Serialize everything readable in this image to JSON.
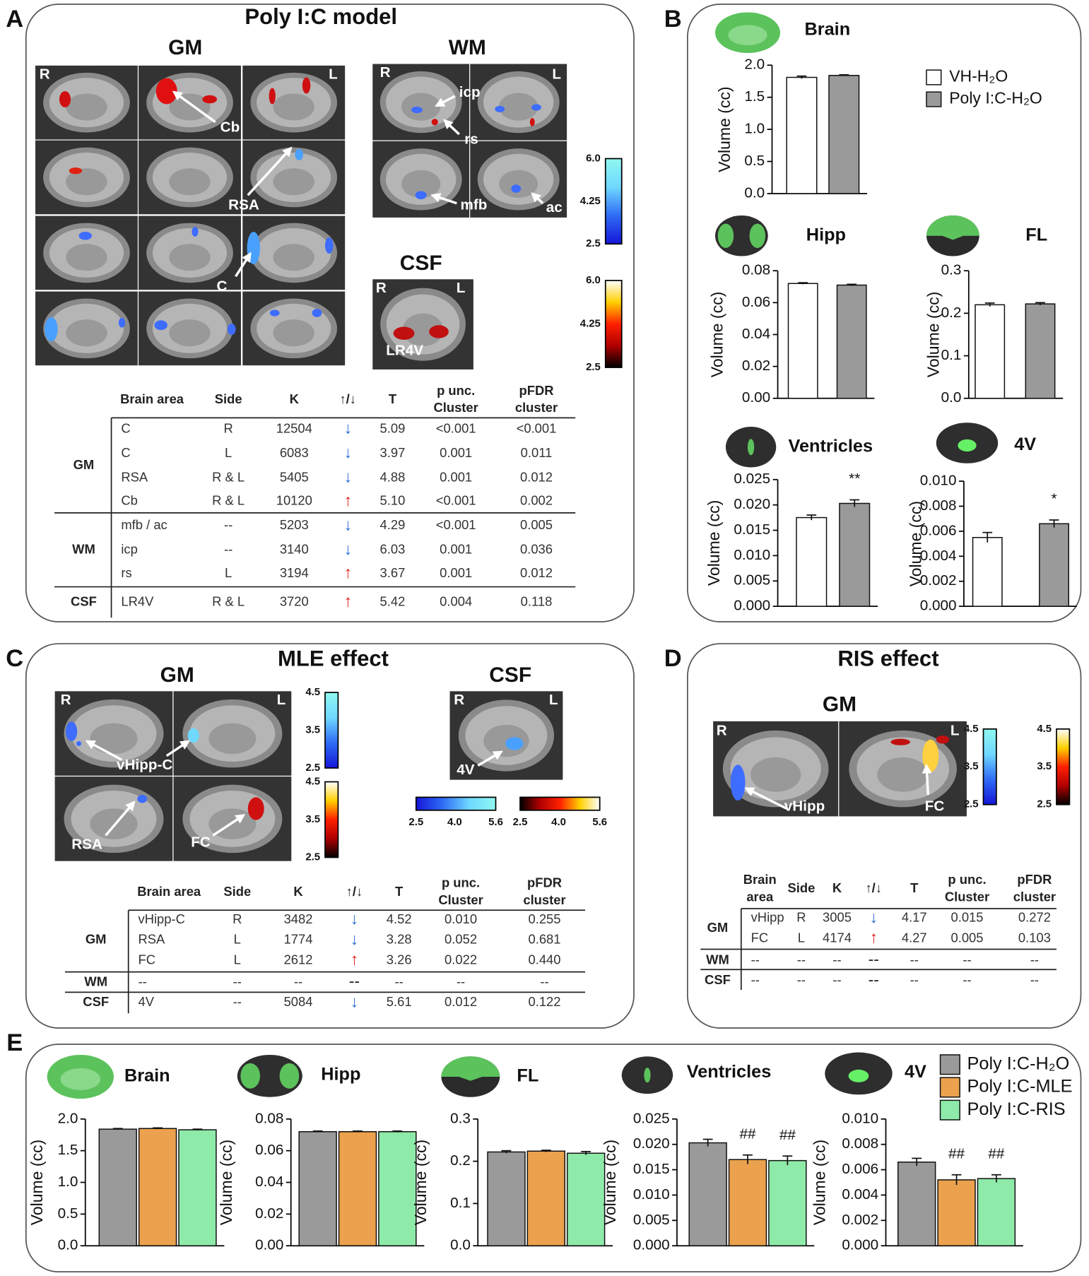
{
  "panel_A": {
    "label": "A",
    "title": "Poly I:C model",
    "gm": "GM",
    "wm": "WM",
    "csf": "CSF",
    "image_labels": [
      "R",
      "L",
      "Cb",
      "RSA",
      "C",
      "R",
      "L",
      "icp",
      "rs",
      "mfb",
      "ac",
      "R",
      "L",
      "LR4V"
    ],
    "colorbars": [
      {
        "colormap": "cool",
        "lim": [
          2.5,
          6.0
        ],
        "ticks": [
          {
            "value": 6,
            "label": "6.0"
          },
          4.25,
          2.5
        ]
      },
      {
        "colormap": "hot",
        "lim": [
          2.5,
          6.0
        ],
        "ticks": [
          {
            "value": 6,
            "label": "6.0"
          },
          4.25,
          2.5
        ]
      }
    ]
  },
  "panel_B": {
    "label": "B"
  },
  "panel_C": {
    "label": "C",
    "title": "MLE effect",
    "gm": "GM",
    "csf": "CSF",
    "image_labels": [
      "R",
      "L",
      "vHipp-C",
      "RSA",
      "FC",
      "R",
      "L",
      "4V"
    ],
    "colorbars": [
      {
        "colormap": "cool",
        "lim": [
          2.5,
          4.5
        ],
        "ticks": [
          4.5,
          3.5,
          2.5
        ]
      },
      {
        "colormap": "hot",
        "lim": [
          2.5,
          4.5
        ],
        "ticks": [
          4.5,
          3.5,
          2.5
        ]
      },
      {
        "colormap": "cool",
        "lim": [
          2.5,
          5.6
        ],
        "ticks": [
          2.5,
          {
            "value": 4,
            "label": "4.0"
          },
          5.6
        ]
      },
      {
        "colormap": "hot",
        "lim": [
          2.5,
          5.6
        ],
        "ticks": [
          2.5,
          {
            "value": 4,
            "label": "4.0"
          },
          5.6
        ]
      }
    ]
  },
  "panel_D": {
    "label": "D",
    "title": "RIS effect",
    "gm": "GM",
    "image_labels": [
      "R",
      "L",
      "vHipp",
      "FC"
    ],
    "colorbars": [
      {
        "colormap": "cool",
        "lim": [
          2.5,
          4.5
        ],
        "ticks": [
          4.5,
          3.5,
          2.5
        ]
      },
      {
        "colormap": "hot",
        "lim": [
          2.5,
          4.5
        ],
        "ticks": [
          4.5,
          3.5,
          2.5
        ]
      }
    ]
  },
  "panel_E": {
    "label": "E"
  },
  "tables": {
    "A": {
      "columns": [
        "Brain area",
        "Side",
        "K",
        "↑/↓",
        "T",
        [
          "p unc.",
          "Cluster"
        ],
        [
          "pFDR",
          "cluster"
        ]
      ],
      "groups": [
        {
          "name": "GM",
          "rows": [
            [
              "C",
              "R",
              "12504",
              "↓",
              "5.09",
              "<0.001",
              "<0.001"
            ],
            [
              "C",
              "L",
              "6083",
              "↓",
              "3.97",
              "0.001",
              "0.011"
            ],
            [
              "RSA",
              "R & L",
              "5405",
              "↓",
              "4.88",
              "0.001",
              "0.012"
            ],
            [
              "Cb",
              "R & L",
              "10120",
              "↑",
              "5.10",
              "<0.001",
              "0.002"
            ]
          ]
        },
        {
          "name": "WM",
          "rows": [
            [
              "mfb / ac",
              "--",
              "5203",
              "↓",
              "4.29",
              "<0.001",
              "0.005"
            ],
            [
              "icp",
              "--",
              "3140",
              "↓",
              "6.03",
              "0.001",
              "0.036"
            ],
            [
              "rs",
              "L",
              "3194",
              "↑",
              "3.67",
              "0.001",
              "0.012"
            ]
          ]
        },
        {
          "name": "CSF",
          "rows": [
            [
              "LR4V",
              "R & L",
              "3720",
              "↑",
              "5.42",
              "0.004",
              "0.118"
            ]
          ]
        }
      ]
    },
    "C": {
      "columns": [
        "Brain area",
        "Side",
        "K",
        "↑/↓",
        "T",
        [
          "p unc.",
          "Cluster"
        ],
        [
          "pFDR",
          "cluster"
        ]
      ],
      "groups": [
        {
          "name": "GM",
          "rows": [
            [
              "vHipp-C",
              "R",
              "3482",
              "↓",
              "4.52",
              "0.010",
              "0.255"
            ],
            [
              "RSA",
              "L",
              "1774",
              "↓",
              "3.28",
              "0.052",
              "0.681"
            ],
            [
              "FC",
              "L",
              "2612",
              "↑",
              "3.26",
              "0.022",
              "0.440"
            ]
          ]
        },
        {
          "name": "WM",
          "rows": [
            [
              "--",
              "--",
              "--",
              "--",
              "--",
              "--",
              "--"
            ]
          ]
        },
        {
          "name": "CSF",
          "rows": [
            [
              "4V",
              "--",
              "5084",
              "↓",
              "5.61",
              "0.012",
              "0.122"
            ]
          ]
        }
      ]
    },
    "D": {
      "columns": [
        [
          "Brain",
          "area"
        ],
        "Side",
        "K",
        "↑/↓",
        "T",
        [
          "p unc.",
          "Cluster"
        ],
        [
          "pFDR",
          "cluster"
        ]
      ],
      "groups": [
        {
          "name": "GM",
          "rows": [
            [
              "vHipp",
              "R",
              "3005",
              "↓",
              "4.17",
              "0.015",
              "0.272"
            ],
            [
              "FC",
              "L",
              "4174",
              "↑",
              "4.27",
              "0.005",
              "0.103"
            ]
          ]
        },
        {
          "name": "WM",
          "rows": [
            [
              "--",
              "--",
              "--",
              "--",
              "--",
              "--",
              "--"
            ]
          ]
        },
        {
          "name": "CSF",
          "rows": [
            [
              "--",
              "--",
              "--",
              "--",
              "--",
              "--",
              "--"
            ]
          ]
        }
      ]
    }
  },
  "chart_data": [
    {
      "type": "bar",
      "title": "Brain",
      "ylabel": "Volume (cc)",
      "ylim": [
        0,
        2.0
      ],
      "yticks": [
        {
          "value": 0,
          "label": "0.0"
        },
        0.5,
        {
          "value": 1,
          "label": "1.0"
        },
        1.5,
        {
          "value": 2,
          "label": "2.0"
        }
      ],
      "legend": true,
      "series": [
        {
          "name": "VH-H₂O",
          "color": "#ffffff",
          "values": [
            1.81
          ],
          "errors": [
            0.02
          ]
        },
        {
          "name": "Poly I:C-H₂O",
          "color": "#9a9a9a",
          "values": [
            1.84
          ],
          "errors": [
            0.01
          ]
        }
      ]
    },
    {
      "type": "bar",
      "title": "Hipp",
      "ylabel": "Volume (cc)",
      "ylim": [
        0,
        0.08
      ],
      "yticks": [
        {
          "value": 0,
          "label": "0.00"
        },
        {
          "value": 0.02,
          "label": "0.02"
        },
        {
          "value": 0.04,
          "label": "0.04"
        },
        {
          "value": 0.06,
          "label": "0.06"
        },
        {
          "value": 0.08,
          "label": "0.08"
        }
      ],
      "series": [
        {
          "color": "#ffffff",
          "values": [
            0.072
          ],
          "errors": [
            0.0005
          ]
        },
        {
          "color": "#9a9a9a",
          "values": [
            0.071
          ],
          "errors": [
            0.0005
          ]
        }
      ]
    },
    {
      "type": "bar",
      "title": "FL",
      "ylabel": "Volume (cc)",
      "ylim": [
        0,
        0.3
      ],
      "yticks": [
        {
          "value": 0,
          "label": "0.0"
        },
        0.1,
        0.2,
        0.3
      ],
      "series": [
        {
          "color": "#ffffff",
          "values": [
            0.22
          ],
          "errors": [
            0.004
          ]
        },
        {
          "color": "#9a9a9a",
          "values": [
            0.222
          ],
          "errors": [
            0.003
          ]
        }
      ]
    },
    {
      "type": "bar",
      "title": "Ventricles",
      "ylabel": "Volume (cc)",
      "ylim": [
        0,
        0.025
      ],
      "yticks": [
        {
          "value": 0,
          "label": "0.000"
        },
        0.005,
        {
          "value": 0.01,
          "label": "0.010"
        },
        0.015,
        {
          "value": 0.02,
          "label": "0.020"
        },
        0.025
      ],
      "series": [
        {
          "color": "#ffffff",
          "values": [
            0.0175
          ],
          "errors": [
            0.0005
          ]
        },
        {
          "color": "#9a9a9a",
          "values": [
            0.0203
          ],
          "errors": [
            0.0007
          ],
          "annotations": [
            "**"
          ]
        }
      ]
    },
    {
      "type": "bar",
      "title": "4V",
      "ylabel": "Volume (cc)",
      "ylim": [
        0,
        0.01
      ],
      "yticks": [
        {
          "value": 0,
          "label": "0.000"
        },
        0.002,
        0.004,
        0.006,
        0.008,
        {
          "value": 0.01,
          "label": "0.010"
        }
      ],
      "series": [
        {
          "color": "#ffffff",
          "values": [
            0.0055
          ],
          "errors": [
            0.0004
          ]
        },
        {
          "color": "#9a9a9a",
          "values": [
            0.0066
          ],
          "errors": [
            0.0003
          ],
          "annotations": [
            "*"
          ]
        }
      ]
    },
    {
      "type": "bar",
      "title": "Brain",
      "ylabel": "Volume (cc)",
      "ylim": [
        0,
        2.0
      ],
      "yticks": [
        {
          "value": 0,
          "label": "0.0"
        },
        0.5,
        {
          "value": 1,
          "label": "1.0"
        },
        1.5,
        {
          "value": 2,
          "label": "2.0"
        }
      ],
      "series": [
        {
          "color": "#9a9a9a",
          "values": [
            1.84
          ],
          "errors": [
            0.01
          ]
        },
        {
          "color": "#eba14d",
          "values": [
            1.85
          ],
          "errors": [
            0.01
          ]
        },
        {
          "color": "#8eeaa9",
          "values": [
            1.83
          ],
          "errors": [
            0.01
          ]
        }
      ]
    },
    {
      "type": "bar",
      "title": "Hipp",
      "ylabel": "Volume (cc)",
      "ylim": [
        0,
        0.08
      ],
      "yticks": [
        {
          "value": 0,
          "label": "0.00"
        },
        {
          "value": 0.02,
          "label": "0.02"
        },
        {
          "value": 0.04,
          "label": "0.04"
        },
        {
          "value": 0.06,
          "label": "0.06"
        },
        {
          "value": 0.08,
          "label": "0.08"
        }
      ],
      "series": [
        {
          "color": "#9a9a9a",
          "values": [
            0.072
          ],
          "errors": [
            0.0004
          ]
        },
        {
          "color": "#eba14d",
          "values": [
            0.072
          ],
          "errors": [
            0.0004
          ]
        },
        {
          "color": "#8eeaa9",
          "values": [
            0.072
          ],
          "errors": [
            0.0004
          ]
        }
      ]
    },
    {
      "type": "bar",
      "title": "FL",
      "ylabel": "Volume (cc)",
      "ylim": [
        0,
        0.3
      ],
      "yticks": [
        {
          "value": 0,
          "label": "0.0"
        },
        0.1,
        0.2,
        0.3
      ],
      "series": [
        {
          "color": "#9a9a9a",
          "values": [
            0.222
          ],
          "errors": [
            0.003
          ]
        },
        {
          "color": "#eba14d",
          "values": [
            0.224
          ],
          "errors": [
            0.002
          ]
        },
        {
          "color": "#8eeaa9",
          "values": [
            0.219
          ],
          "errors": [
            0.004
          ]
        }
      ]
    },
    {
      "type": "bar",
      "title": "Ventricles",
      "ylabel": "Volume (cc)",
      "ylim": [
        0,
        0.025
      ],
      "yticks": [
        {
          "value": 0,
          "label": "0.000"
        },
        0.005,
        {
          "value": 0.01,
          "label": "0.010"
        },
        0.015,
        {
          "value": 0.02,
          "label": "0.020"
        },
        0.025
      ],
      "series": [
        {
          "color": "#9a9a9a",
          "values": [
            0.0203
          ],
          "errors": [
            0.0007
          ]
        },
        {
          "color": "#eba14d",
          "values": [
            0.017
          ],
          "errors": [
            0.0009
          ],
          "annotations": [
            "##"
          ]
        },
        {
          "color": "#8eeaa9",
          "values": [
            0.0168
          ],
          "errors": [
            0.0009
          ],
          "annotations": [
            "##"
          ]
        }
      ]
    },
    {
      "type": "bar",
      "title": "4V",
      "ylabel": "Volume (cc)",
      "ylim": [
        0,
        0.01
      ],
      "yticks": [
        {
          "value": 0,
          "label": "0.000"
        },
        0.002,
        0.004,
        0.006,
        0.008,
        {
          "value": 0.01,
          "label": "0.010"
        }
      ],
      "legend": true,
      "series": [
        {
          "name": "Poly I:C-H₂O",
          "color": "#9a9a9a",
          "values": [
            0.0066
          ],
          "errors": [
            0.0003
          ]
        },
        {
          "name": "Poly I:C-MLE",
          "color": "#eba14d",
          "values": [
            0.0052
          ],
          "errors": [
            0.0004
          ],
          "annotations": [
            "##"
          ]
        },
        {
          "name": "Poly I:C-RIS",
          "color": "#8eeaa9",
          "values": [
            0.0053
          ],
          "errors": [
            0.0003
          ],
          "annotations": [
            "##"
          ]
        }
      ]
    }
  ]
}
